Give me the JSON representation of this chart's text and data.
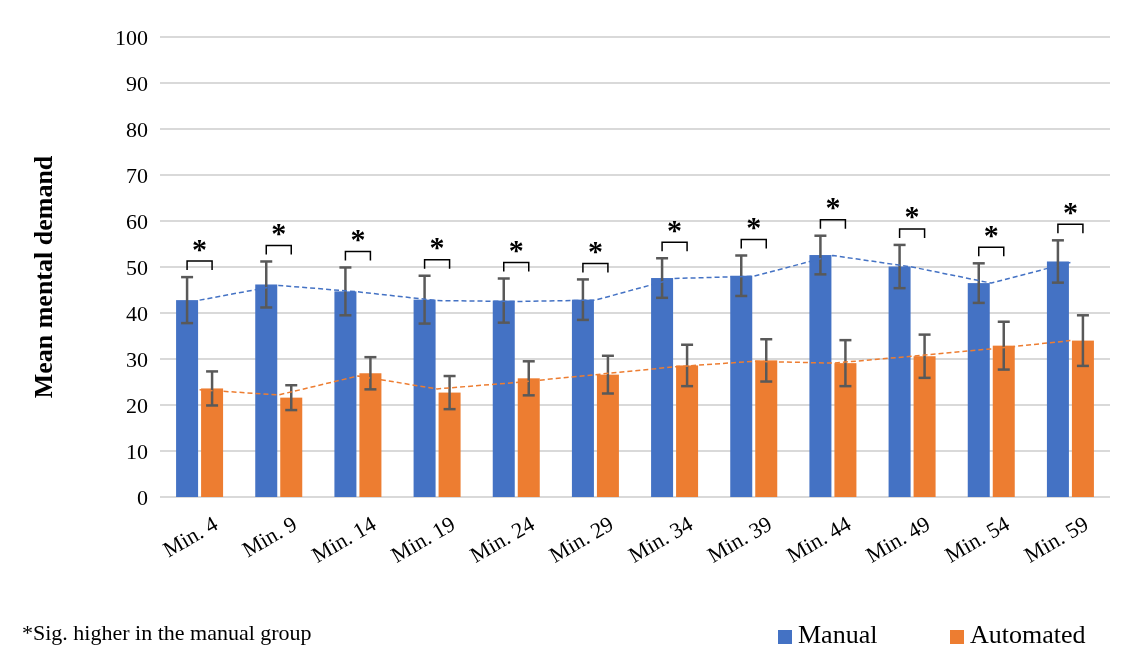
{
  "chart_data": {
    "type": "bar",
    "ylabel": "Mean mental demand",
    "categories": [
      "Min. 4",
      "Min. 9",
      "Min. 14",
      "Min. 19",
      "Min. 24",
      "Min. 29",
      "Min. 34",
      "Min. 39",
      "Min. 44",
      "Min. 49",
      "Min. 54",
      "Min. 59"
    ],
    "series": [
      {
        "name": "Manual",
        "color": "#4472c4",
        "values": [
          42.8,
          46.2,
          44.7,
          42.9,
          42.7,
          42.9,
          47.6,
          48.1,
          52.6,
          50.1,
          46.5,
          51.2
        ],
        "errors": [
          5,
          5,
          5.2,
          5.2,
          4.8,
          4.4,
          4.3,
          4.4,
          4.2,
          4.7,
          4.3,
          4.6
        ]
      },
      {
        "name": "Automated",
        "color": "#ed7d31",
        "values": [
          23.6,
          21.6,
          26.9,
          22.7,
          25.8,
          26.6,
          28.6,
          29.7,
          29.1,
          30.6,
          32.9,
          34.0
        ],
        "errors": [
          3.7,
          2.7,
          3.5,
          3.6,
          3.7,
          4.1,
          4.5,
          4.6,
          5,
          4.7,
          5.2,
          5.5
        ]
      },
      {
        "type": "line",
        "color": "#4472c4",
        "line_style": "dashed",
        "values": [
          42.8,
          46.0,
          44.6,
          42.7,
          42.5,
          42.8,
          47.5,
          48.0,
          52.5,
          50.0,
          46.5,
          51.0
        ]
      },
      {
        "type": "line",
        "color": "#ed7d31",
        "line_style": "dashed",
        "values": [
          23.3,
          22.2,
          26.3,
          23.5,
          24.9,
          26.6,
          28.3,
          29.5,
          29.1,
          30.6,
          32.2,
          34.0
        ]
      }
    ],
    "ylim": [
      0,
      100
    ],
    "yticks": [
      0,
      10,
      20,
      30,
      40,
      50,
      60,
      70,
      80,
      90,
      100
    ],
    "grid": "y",
    "legend": "bottom right",
    "annotations": [
      "*",
      "*",
      "*",
      "*",
      "*",
      "*",
      "*",
      "*",
      "*",
      "*",
      "*",
      "*",
      "*Sig. higher in the manual group"
    ]
  }
}
